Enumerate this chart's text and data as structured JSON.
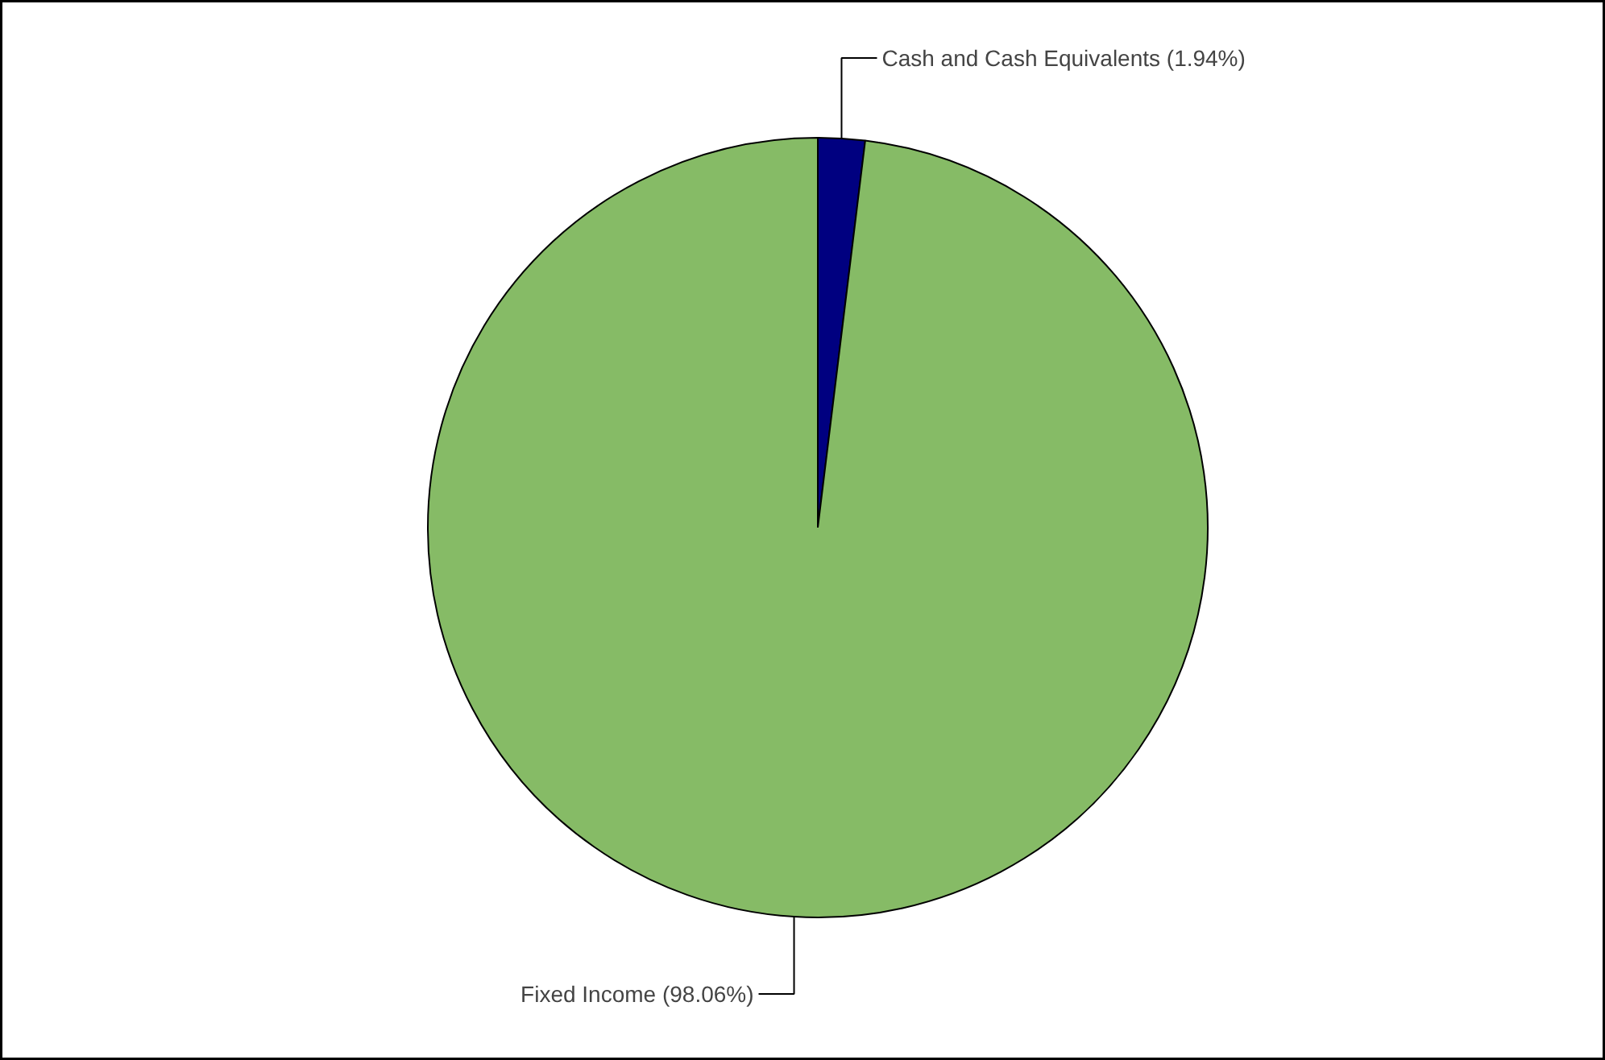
{
  "chart_data": {
    "type": "pie",
    "categories": [
      "Cash and Cash Equivalents",
      "Fixed Income"
    ],
    "values": [
      1.94,
      98.06
    ],
    "value_labels": [
      "(1.94%)",
      "(98.06%)"
    ],
    "colors": [
      "#000080",
      "#86bb66"
    ]
  }
}
